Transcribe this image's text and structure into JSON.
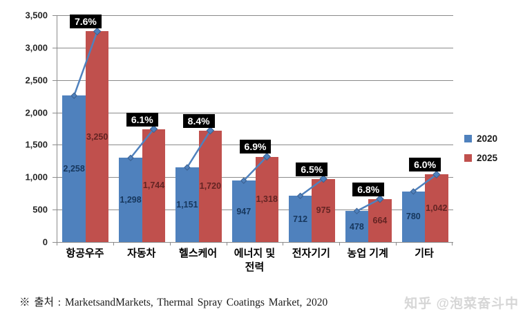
{
  "chart_data": {
    "type": "bar",
    "title": "",
    "categories": [
      "항공우주",
      "자동차",
      "헬스케어",
      "에너지 및\n전력",
      "전자기기",
      "농업 기계",
      "기타"
    ],
    "series": [
      {
        "name": "2020",
        "color": "#4F81BD",
        "label_color": "#17375D",
        "values": [
          2258,
          1298,
          1151,
          947,
          712,
          478,
          780
        ],
        "labels": [
          "2,258",
          "1,298",
          "1,151",
          "947",
          "712",
          "478",
          "780"
        ]
      },
      {
        "name": "2025",
        "color": "#C0504D",
        "label_color": "#632423",
        "values": [
          3250,
          1744,
          1720,
          1318,
          975,
          664,
          1042
        ],
        "labels": [
          "3,250",
          "1,744",
          "1,720",
          "1,318",
          "975",
          "664",
          "1,042"
        ]
      }
    ],
    "growth_labels": [
      "7.6%",
      "6.1%",
      "8.4%",
      "6.9%",
      "6.5%",
      "6.8%",
      "6.0%"
    ],
    "ylim": [
      0,
      3500
    ],
    "ytick_step": 500,
    "yticks": [
      "0",
      "500",
      "1,000",
      "1,500",
      "2,000",
      "2,500",
      "3,000",
      "3,500"
    ],
    "grid": true,
    "legend_position": "right",
    "trend_line_color": "#4F81BD",
    "marker_stroke": "#3A5F8F",
    "growth_badge_bg": "#000000",
    "growth_badge_text": "#FFFFFF"
  },
  "footer": {
    "source": "※ 출처 : MarketsandMarkets, Thermal Spray Coatings Market, 2020"
  },
  "watermark": "知乎 @泡菜奋斗中"
}
